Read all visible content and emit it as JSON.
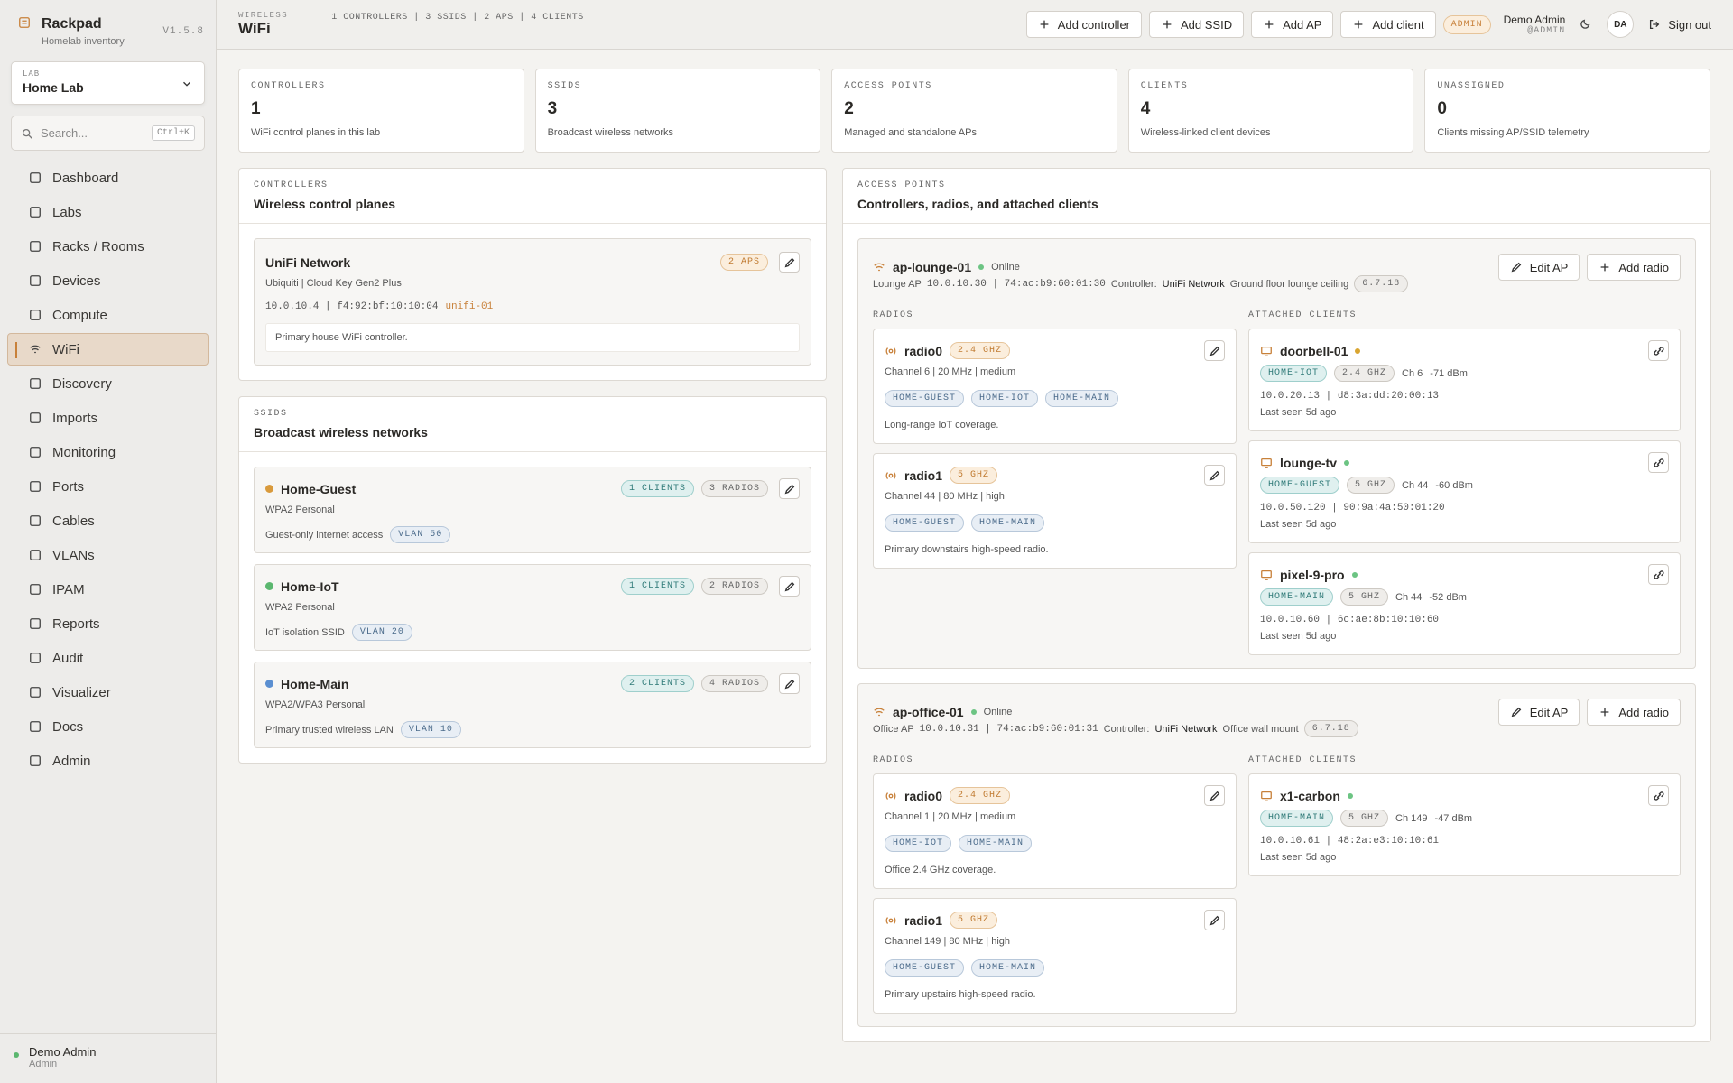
{
  "sidebar": {
    "brand": "Rackpad",
    "tagline": "Homelab inventory",
    "version": "V1.5.8",
    "lab_label": "LAB",
    "lab": "Home Lab",
    "search": "Search...",
    "shortcut": "Ctrl+K",
    "nav": [
      {
        "label": "Dashboard"
      },
      {
        "label": "Labs"
      },
      {
        "label": "Racks / Rooms"
      },
      {
        "label": "Devices"
      },
      {
        "label": "Compute"
      },
      {
        "label": "WiFi",
        "active": true
      },
      {
        "label": "Discovery"
      },
      {
        "label": "Imports"
      },
      {
        "label": "Monitoring"
      },
      {
        "label": "Ports"
      },
      {
        "label": "Cables"
      },
      {
        "label": "VLANs"
      },
      {
        "label": "IPAM"
      },
      {
        "label": "Reports"
      },
      {
        "label": "Audit"
      },
      {
        "label": "Visualizer"
      },
      {
        "label": "Docs"
      },
      {
        "label": "Admin"
      }
    ],
    "user": {
      "name": "Demo Admin",
      "role": "Admin"
    }
  },
  "header": {
    "eyebrow": "WIRELESS",
    "title": "WiFi",
    "summary": "1 CONTROLLERS | 3 SSIDS | 2 APS | 4 CLIENTS",
    "actions": [
      "Add controller",
      "Add SSID",
      "Add AP",
      "Add client"
    ],
    "badge": "ADMIN",
    "user_name": "Demo Admin",
    "user_handle": "@ADMIN",
    "avatar": "DA",
    "sign_out": "Sign out"
  },
  "stats": [
    {
      "label": "CONTROLLERS",
      "value": 1,
      "note": "WiFi control planes in this lab"
    },
    {
      "label": "SSIDS",
      "value": 3,
      "note": "Broadcast wireless networks"
    },
    {
      "label": "ACCESS POINTS",
      "value": 2,
      "note": "Managed and standalone APs"
    },
    {
      "label": "CLIENTS",
      "value": 4,
      "note": "Wireless-linked client devices"
    },
    {
      "label": "UNASSIGNED",
      "value": 0,
      "note": "Clients missing AP/SSID telemetry"
    }
  ],
  "controllers": {
    "eyebrow": "CONTROLLERS",
    "title": "Wireless control planes",
    "items": [
      {
        "name": "UniFi Network",
        "badge": "2 APS",
        "model": "Ubiquiti | Cloud Key Gen2 Plus",
        "address": "10.0.10.4 | f4:92:bf:10:10:04",
        "host": "unifi-01",
        "note": "Primary house WiFi controller."
      }
    ]
  },
  "ssids": {
    "eyebrow": "SSIDS",
    "title": "Broadcast wireless networks",
    "items": [
      {
        "name": "Home-Guest",
        "color": "#d99a3c",
        "security": "WPA2 Personal",
        "clients": "1 CLIENTS",
        "radios": "3 RADIOS",
        "note": "Guest-only internet access",
        "vlan": "VLAN 50"
      },
      {
        "name": "Home-IoT",
        "color": "#5bb76f",
        "security": "WPA2 Personal",
        "clients": "1 CLIENTS",
        "radios": "2 RADIOS",
        "note": "IoT isolation SSID",
        "vlan": "VLAN 20"
      },
      {
        "name": "Home-Main",
        "color": "#5b8fd1",
        "security": "WPA2/WPA3 Personal",
        "clients": "2 CLIENTS",
        "radios": "4 RADIOS",
        "note": "Primary trusted wireless LAN",
        "vlan": "VLAN 10"
      }
    ]
  },
  "access_points": {
    "eyebrow": "ACCESS POINTS",
    "title": "Controllers, radios, and attached clients",
    "aps": [
      {
        "name": "ap-lounge-01",
        "status": "Online",
        "role": "Lounge AP",
        "address": "10.0.10.30 | 74:ac:b9:60:01:30",
        "controller_label": "Controller:",
        "controller": "UniFi Network",
        "location": "Ground floor lounge ceiling",
        "firmware": "6.7.18",
        "edit": "Edit AP",
        "add": "Add radio",
        "radios_label": "RADIOS",
        "clients_label": "ATTACHED CLIENTS",
        "radios": [
          {
            "name": "radio0",
            "band": "2.4 GHZ",
            "detail": "Channel 6 | 20 MHz | medium",
            "ssids": [
              "HOME-GUEST",
              "HOME-IOT",
              "HOME-MAIN"
            ],
            "note": "Long-range IoT coverage."
          },
          {
            "name": "radio1",
            "band": "5 GHZ",
            "detail": "Channel 44 | 80 MHz | high",
            "ssids": [
              "HOME-GUEST",
              "HOME-MAIN"
            ],
            "note": "Primary downstairs high-speed radio."
          }
        ],
        "clients": [
          {
            "name": "doorbell-01",
            "status_color": "#d9a530",
            "ssid": "HOME-IOT",
            "band": "2.4 GHZ",
            "channel": "Ch 6",
            "signal": "-71 dBm",
            "address": "10.0.20.13 | d8:3a:dd:20:00:13",
            "seen": "Last seen 5d ago"
          },
          {
            "name": "lounge-tv",
            "status_color": "#6cc483",
            "ssid": "HOME-GUEST",
            "band": "5 GHZ",
            "channel": "Ch 44",
            "signal": "-60 dBm",
            "address": "10.0.50.120 | 90:9a:4a:50:01:20",
            "seen": "Last seen 5d ago"
          },
          {
            "name": "pixel-9-pro",
            "status_color": "#6cc483",
            "ssid": "HOME-MAIN",
            "band": "5 GHZ",
            "channel": "Ch 44",
            "signal": "-52 dBm",
            "address": "10.0.10.60 | 6c:ae:8b:10:10:60",
            "seen": "Last seen 5d ago"
          }
        ]
      },
      {
        "name": "ap-office-01",
        "status": "Online",
        "role": "Office AP",
        "address": "10.0.10.31 | 74:ac:b9:60:01:31",
        "controller_label": "Controller:",
        "controller": "UniFi Network",
        "location": "Office wall mount",
        "firmware": "6.7.18",
        "edit": "Edit AP",
        "add": "Add radio",
        "radios_label": "RADIOS",
        "clients_label": "ATTACHED CLIENTS",
        "radios": [
          {
            "name": "radio0",
            "band": "2.4 GHZ",
            "detail": "Channel 1 | 20 MHz | medium",
            "ssids": [
              "HOME-IOT",
              "HOME-MAIN"
            ],
            "note": "Office 2.4 GHz coverage."
          },
          {
            "name": "radio1",
            "band": "5 GHZ",
            "detail": "Channel 149 | 80 MHz | high",
            "ssids": [
              "HOME-GUEST",
              "HOME-MAIN"
            ],
            "note": "Primary upstairs high-speed radio."
          }
        ],
        "clients": [
          {
            "name": "x1-carbon",
            "status_color": "#6cc483",
            "ssid": "HOME-MAIN",
            "band": "5 GHZ",
            "channel": "Ch 149",
            "signal": "-47 dBm",
            "address": "10.0.10.61 | 48:2a:e3:10:10:61",
            "seen": "Last seen 5d ago"
          }
        ]
      }
    ]
  }
}
